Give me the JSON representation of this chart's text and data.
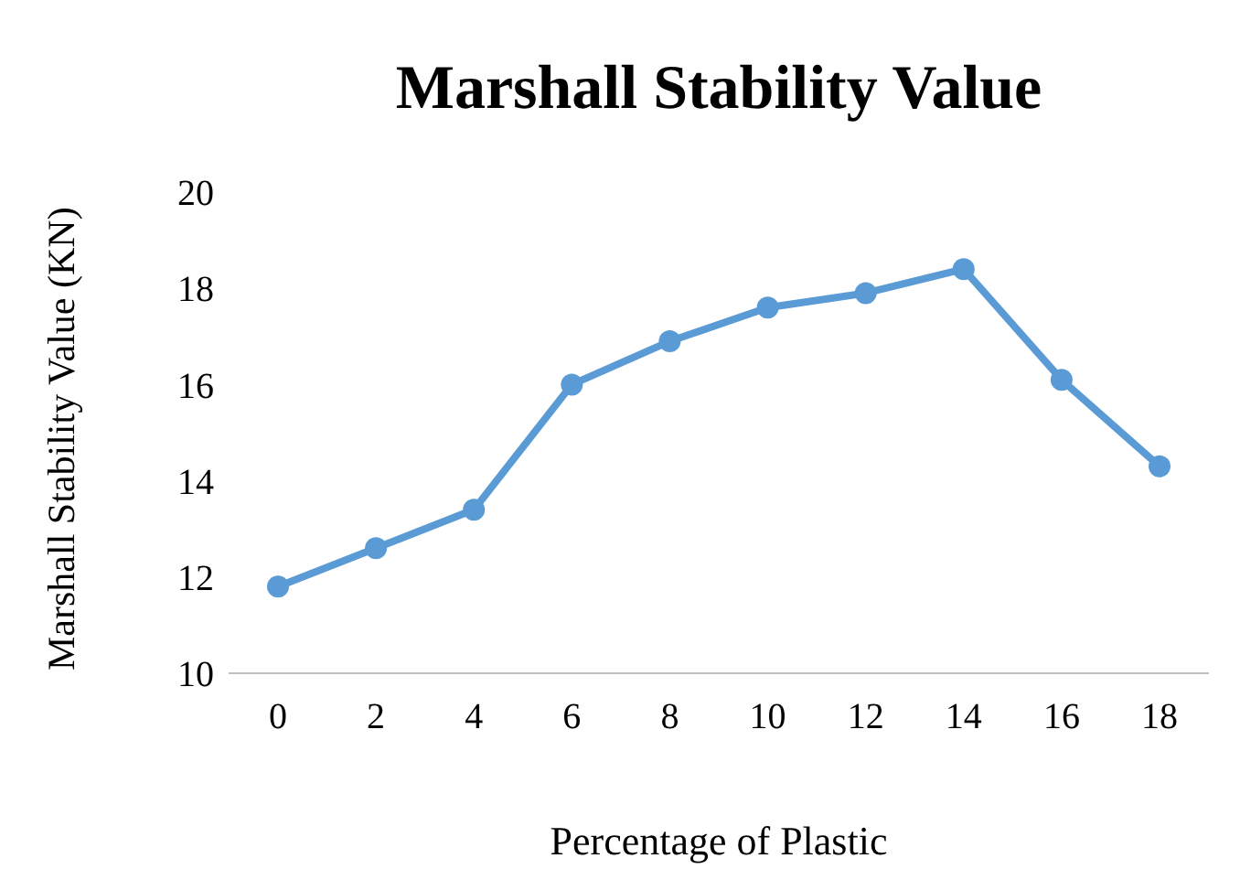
{
  "chart_data": {
    "type": "line",
    "title": "Marshall Stability Value",
    "xlabel": "Percentage of Plastic",
    "ylabel": "Marshall Stability Value (KN)",
    "categories": [
      "0",
      "2",
      "4",
      "6",
      "8",
      "10",
      "12",
      "14",
      "16",
      "18"
    ],
    "series": [
      {
        "color": "#5b9bd5",
        "values": [
          11.8,
          12.6,
          13.4,
          16.0,
          16.9,
          17.6,
          17.9,
          18.4,
          16.1,
          14.3
        ]
      }
    ],
    "ylim": [
      10,
      20
    ],
    "yticks": [
      10,
      12,
      14,
      16,
      18,
      20
    ],
    "grid": false,
    "legend": false,
    "marker": "circle",
    "line_style": "solid"
  }
}
